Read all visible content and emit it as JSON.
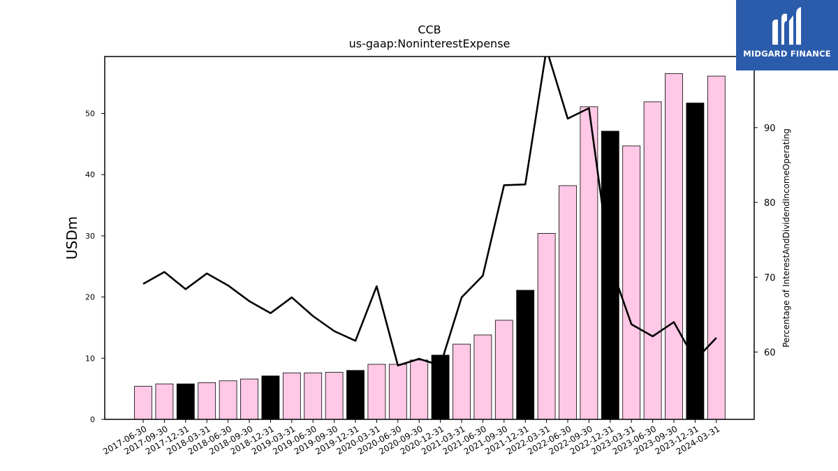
{
  "brand": {
    "name": "MIDGARD FINANCE",
    "color": "#2b5cab"
  },
  "chart_data": {
    "type": "bar",
    "title": "CCB",
    "subtitle": "us-gaap:NoninterestExpense",
    "ylabel": "USDm",
    "y2label": "Percentage of InterestAndDividendIncomeOperating",
    "ylim": [
      0,
      59.3
    ],
    "y2lim": [
      51,
      99.5
    ],
    "yticks": [
      0,
      10,
      20,
      30,
      40,
      50
    ],
    "y2ticks": [
      60,
      70,
      80,
      90
    ],
    "categories": [
      "2017-06-30",
      "2017-09-30",
      "2017-12-31",
      "2018-03-31",
      "2018-06-30",
      "2018-09-30",
      "2018-12-31",
      "2019-03-31",
      "2019-06-30",
      "2019-09-30",
      "2019-12-31",
      "2020-03-31",
      "2020-06-30",
      "2020-09-30",
      "2020-12-31",
      "2021-03-31",
      "2021-06-30",
      "2021-09-30",
      "2021-12-31",
      "2022-03-31",
      "2022-06-30",
      "2022-09-30",
      "2022-12-31",
      "2023-03-31",
      "2023-06-30",
      "2023-09-30",
      "2023-12-31",
      "2024-03-31"
    ],
    "series": [
      {
        "type": "bar",
        "values": [
          5.4,
          5.8,
          5.8,
          6.0,
          6.3,
          6.6,
          7.1,
          7.6,
          7.6,
          7.7,
          8.0,
          9.0,
          9.0,
          9.7,
          10.5,
          12.3,
          13.8,
          16.2,
          21.1,
          30.4,
          38.2,
          51.1,
          47.1,
          44.7,
          51.9,
          56.5,
          51.7,
          56.1
        ],
        "colors_by_quarter": {
          "annual": "#000000",
          "quarterly": "#ffc8e6"
        },
        "highlight": [
          false,
          false,
          true,
          false,
          false,
          false,
          true,
          false,
          false,
          false,
          true,
          false,
          false,
          false,
          true,
          false,
          false,
          false,
          true,
          false,
          false,
          false,
          true,
          false,
          false,
          false,
          true,
          false
        ]
      },
      {
        "type": "line",
        "axis": "right",
        "color": "#000000",
        "values": [
          69.1,
          70.7,
          68.4,
          70.5,
          68.9,
          66.8,
          65.2,
          67.3,
          64.8,
          62.8,
          61.5,
          68.8,
          58.2,
          59.1,
          58.2,
          67.3,
          70.2,
          82.3,
          82.4,
          100.5,
          91.2,
          92.6,
          71.8,
          63.7,
          62.1,
          64.0,
          58.9,
          61.9
        ]
      }
    ],
    "grid": false,
    "legend": "none"
  }
}
